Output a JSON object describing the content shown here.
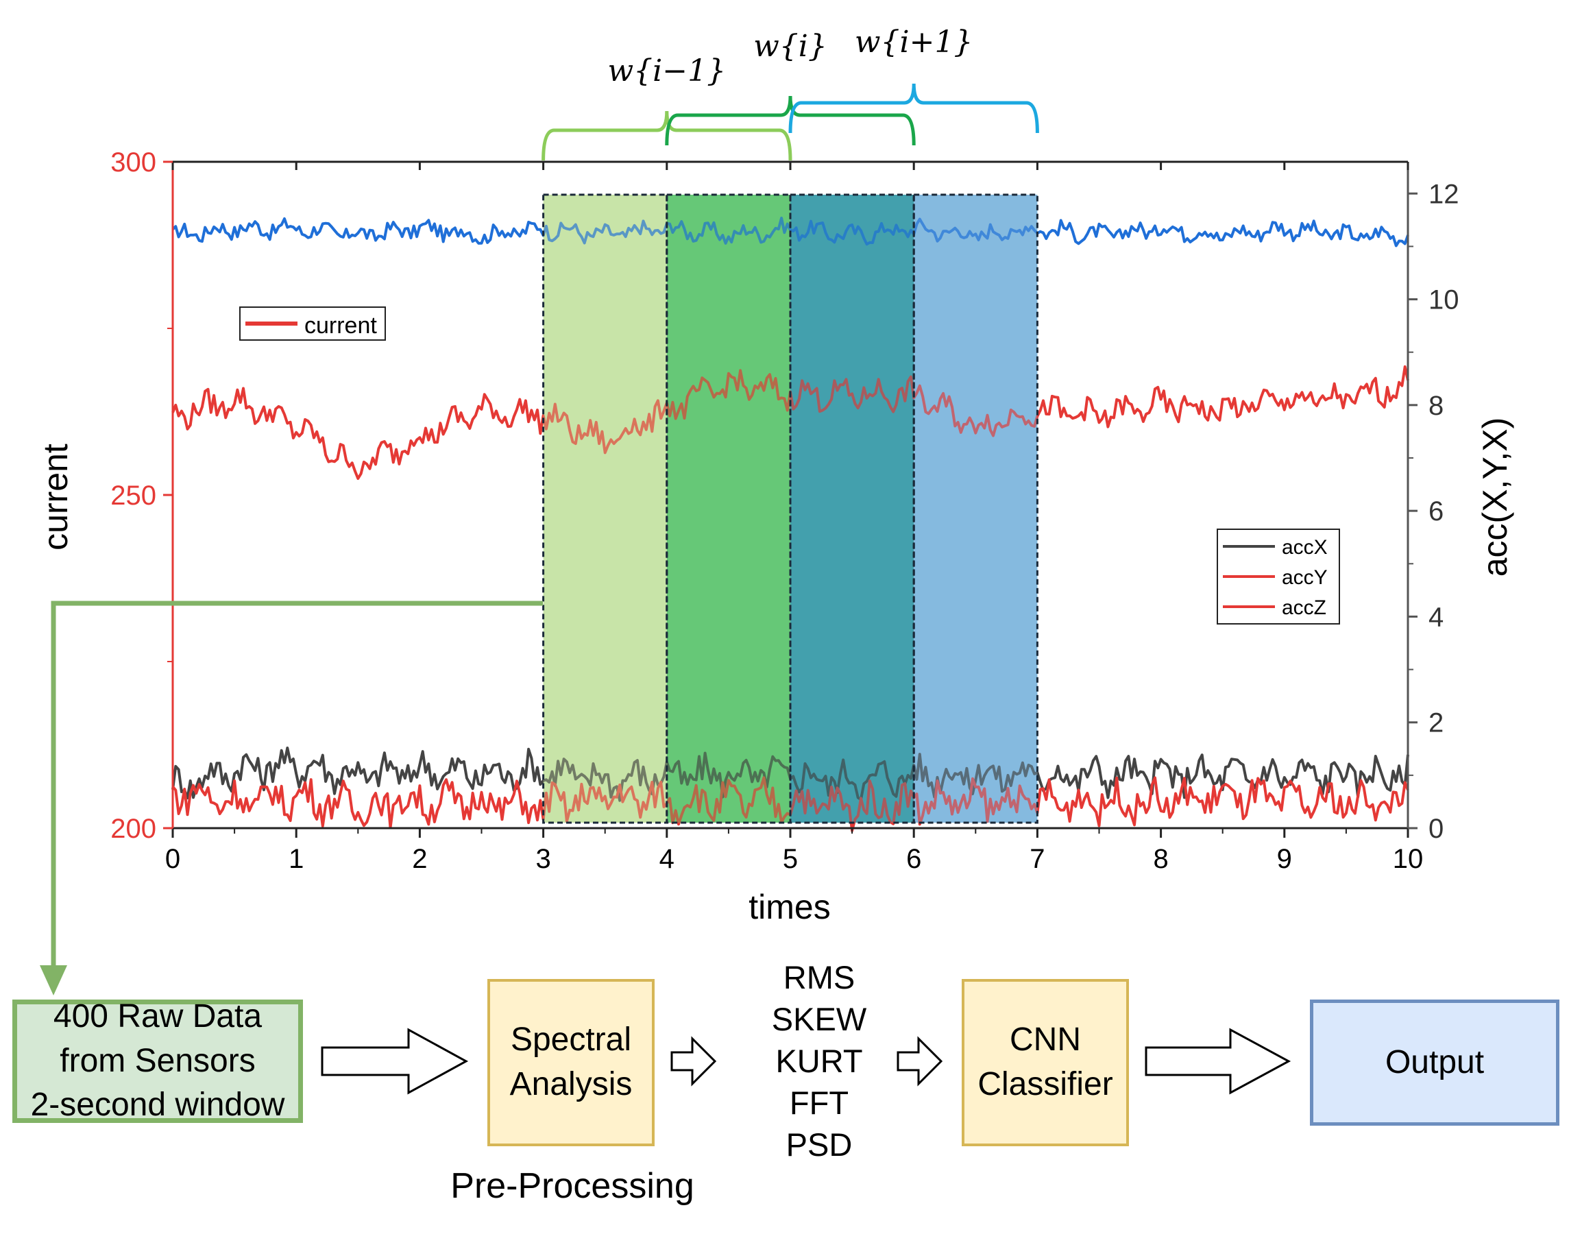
{
  "chart_data": {
    "type": "line",
    "xlabel": "times",
    "ylabel_left": "current",
    "ylabel_right": "acc(X,Y,X)",
    "xlim": [
      0,
      10
    ],
    "ylim_left": [
      200,
      300
    ],
    "ylim_right": [
      0,
      12.6
    ],
    "x_ticks": [
      "0",
      "1",
      "2",
      "3",
      "4",
      "5",
      "6",
      "7",
      "8",
      "9",
      "10"
    ],
    "y_left_ticks": [
      "200",
      "250",
      "300"
    ],
    "y_right_ticks": [
      "0",
      "2",
      "4",
      "6",
      "8",
      "10",
      "12"
    ],
    "legend_current": [
      "current"
    ],
    "legend_acc": [
      "accX",
      "accY",
      "accZ"
    ],
    "series": [
      {
        "name": "current",
        "axis": "left",
        "color": "#1f6fd8",
        "x": [
          0,
          0.5,
          1,
          1.5,
          2,
          2.5,
          3,
          3.5,
          4,
          4.5,
          5,
          5.5,
          6,
          6.5,
          7,
          7.5,
          8,
          8.5,
          9,
          9.5,
          10
        ],
        "y": [
          289,
          290,
          290,
          289,
          290,
          289,
          290,
          289,
          290,
          289,
          290,
          289,
          290,
          289,
          290,
          289,
          290,
          289,
          290,
          289,
          289
        ]
      },
      {
        "name": "accX",
        "axis": "right",
        "color": "#444444",
        "x": [
          0,
          0.5,
          1,
          1.5,
          2,
          2.5,
          3,
          3.5,
          4,
          4.5,
          5,
          5.5,
          6,
          6.5,
          7,
          7.5,
          8,
          8.5,
          9,
          9.5,
          10
        ],
        "y": [
          0.8,
          1.1,
          1.2,
          1.0,
          1.1,
          1.0,
          1.1,
          0.9,
          1.0,
          1.0,
          1.0,
          0.9,
          1.0,
          1.0,
          1.0,
          1.0,
          1.0,
          1.0,
          1.0,
          1.0,
          1.0
        ]
      },
      {
        "name": "accY",
        "axis": "right",
        "color": "#e53935",
        "x": [
          0,
          0.5,
          1,
          1.5,
          2,
          2.5,
          3,
          3.5,
          4,
          4.5,
          5,
          5.5,
          6,
          6.5,
          7,
          7.5,
          8,
          8.5,
          9,
          9.5,
          10
        ],
        "y": [
          7.8,
          8.1,
          7.6,
          6.8,
          7.4,
          7.9,
          7.8,
          7.3,
          7.9,
          8.4,
          8.2,
          8.2,
          8.2,
          7.6,
          7.9,
          7.8,
          8.0,
          7.9,
          8.1,
          8.1,
          8.4
        ]
      },
      {
        "name": "accZ",
        "axis": "right",
        "color": "#e53935",
        "x": [
          0,
          0.5,
          1,
          1.5,
          2,
          2.5,
          3,
          3.5,
          4,
          4.5,
          5,
          5.5,
          6,
          6.5,
          7,
          7.5,
          8,
          8.5,
          9,
          9.5,
          10
        ],
        "y": [
          0.7,
          0.5,
          0.6,
          0.4,
          0.5,
          0.5,
          0.4,
          0.6,
          0.5,
          0.5,
          0.5,
          0.4,
          0.5,
          0.5,
          0.5,
          0.5,
          0.5,
          0.6,
          0.5,
          0.5,
          0.5
        ]
      }
    ],
    "windows": [
      {
        "x0": 3,
        "x1": 4,
        "color": "#c5e3a4"
      },
      {
        "x0": 4,
        "x1": 5,
        "color": "#5ec571"
      },
      {
        "x0": 5,
        "x1": 6,
        "color": "#3a9ca8"
      },
      {
        "x0": 6,
        "x1": 7,
        "color": "#7fb6de"
      }
    ],
    "braces": [
      {
        "label": "w{i−1}",
        "x0": 3,
        "x1": 5,
        "color": "#8ccc5a"
      },
      {
        "label": "w{i}",
        "x0": 4,
        "x1": 6,
        "color": "#1aa64a"
      },
      {
        "label": "w{i+1}",
        "x0": 5,
        "x1": 7,
        "color": "#1ca8e0"
      }
    ],
    "colors": {
      "left_axis": "#e53935",
      "right_axis": "#555555",
      "arrow": "#82b366"
    }
  },
  "pipeline": {
    "raw_data": "400 Raw Data\nfrom Sensors\n2-second window",
    "spectral": "Spectral\nAnalysis",
    "features": [
      "RMS",
      "SKEW",
      "KURT",
      "FFT",
      "PSD"
    ],
    "cnn": "CNN\nClassifier",
    "output": "Output",
    "preprocessing_label": "Pre-Processing"
  }
}
